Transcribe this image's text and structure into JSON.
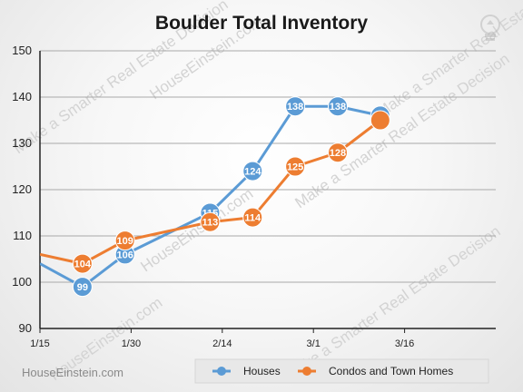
{
  "chart_data": {
    "type": "line",
    "title": "Boulder Total Inventory",
    "xlabel": "",
    "ylabel": "",
    "ylim": [
      90,
      150
    ],
    "yticks": [
      90,
      100,
      110,
      120,
      130,
      140,
      150
    ],
    "x_tick_labels": [
      "1/15",
      "1/30",
      "2/14",
      "3/1",
      "3/16"
    ],
    "grid": true,
    "legend_position": "bottom",
    "series": [
      {
        "name": "Houses",
        "color": "#5b9bd5",
        "points": [
          {
            "day": 0,
            "value": 104
          },
          {
            "day": 7,
            "value": 99,
            "label": "99"
          },
          {
            "day": 14,
            "value": 106,
            "label": "106"
          },
          {
            "day": 28,
            "value": 115,
            "label": "115"
          },
          {
            "day": 35,
            "value": 124,
            "label": "124"
          },
          {
            "day": 42,
            "value": 138,
            "label": "138"
          },
          {
            "day": 49,
            "value": 138,
            "label": "138"
          },
          {
            "day": 56,
            "value": 136,
            "label": "136"
          }
        ]
      },
      {
        "name": "Condos and Town Homes",
        "color": "#ed7d31",
        "points": [
          {
            "day": 0,
            "value": 106
          },
          {
            "day": 7,
            "value": 104,
            "label": "104"
          },
          {
            "day": 14,
            "value": 109,
            "label": "109"
          },
          {
            "day": 28,
            "value": 113,
            "label": "113"
          },
          {
            "day": 35,
            "value": 114,
            "label": "114"
          },
          {
            "day": 42,
            "value": 125,
            "label": "125"
          },
          {
            "day": 49,
            "value": 128,
            "label": "128"
          },
          {
            "day": 56,
            "value": 135
          }
        ]
      }
    ]
  },
  "brand": "HouseEinstein.com",
  "watermark_lines": [
    "Make a Smarter Real Estate Decision",
    "HouseEinstein.com"
  ],
  "logo_icon": "lightbulb-logo-icon"
}
